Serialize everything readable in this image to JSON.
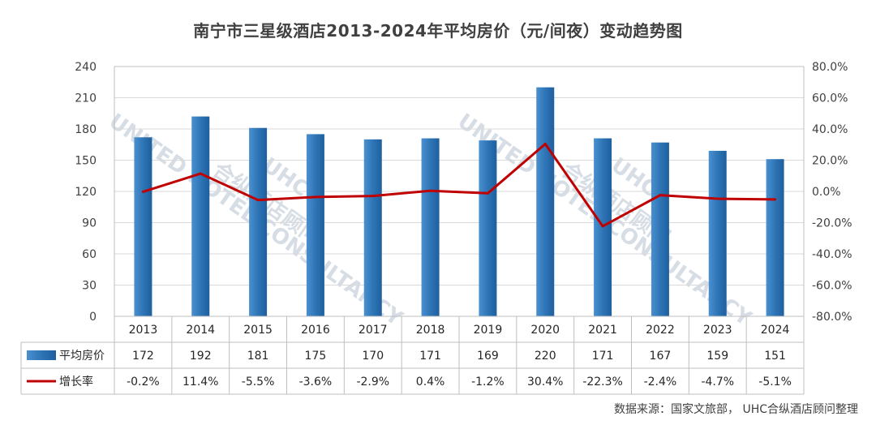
{
  "title": "南宁市三星级酒店2013-2024年平均房价（元/间夜）变动趋势图",
  "source_note": "数据来源：国家文旅部， UHC合纵酒店顾问整理",
  "watermark": {
    "logo": "UHC",
    "cn": "合纵酒店顾问",
    "en": "UNITED HOTEL CONSULTANCY"
  },
  "colors": {
    "bar": "#2e75b6",
    "line": "#c00000",
    "grid": "#d9d9d9",
    "axis": "#bfbfbf"
  },
  "chart_data": {
    "type": "bar+line",
    "categories": [
      "2013",
      "2014",
      "2015",
      "2016",
      "2017",
      "2018",
      "2019",
      "2020",
      "2021",
      "2022",
      "2023",
      "2024"
    ],
    "series": [
      {
        "name": "平均房价",
        "type": "bar",
        "axis": "left",
        "values": [
          172,
          192,
          181,
          175,
          170,
          171,
          169,
          220,
          171,
          167,
          159,
          151
        ],
        "labels": [
          "172",
          "192",
          "181",
          "175",
          "170",
          "171",
          "169",
          "220",
          "171",
          "167",
          "159",
          "151"
        ]
      },
      {
        "name": "增长率",
        "type": "line",
        "axis": "right",
        "values": [
          -0.2,
          11.4,
          -5.5,
          -3.6,
          -2.9,
          0.4,
          -1.2,
          30.4,
          -22.3,
          -2.4,
          -4.7,
          -5.1
        ],
        "labels": [
          "-0.2%",
          "11.4%",
          "-5.5%",
          "-3.6%",
          "-2.9%",
          "0.4%",
          "-1.2%",
          "30.4%",
          "-22.3%",
          "-2.4%",
          "-4.7%",
          "-5.1%"
        ]
      }
    ],
    "y_left": {
      "min": 0,
      "max": 240,
      "ticks": [
        "0",
        "30",
        "60",
        "90",
        "120",
        "150",
        "180",
        "210",
        "240"
      ]
    },
    "y_right": {
      "min": -80,
      "max": 80,
      "ticks": [
        "-80.0%",
        "-60.0%",
        "-40.0%",
        "-20.0%",
        "0.0%",
        "20.0%",
        "40.0%",
        "60.0%",
        "80.0%"
      ]
    },
    "grid": true,
    "legend": "data-table"
  }
}
